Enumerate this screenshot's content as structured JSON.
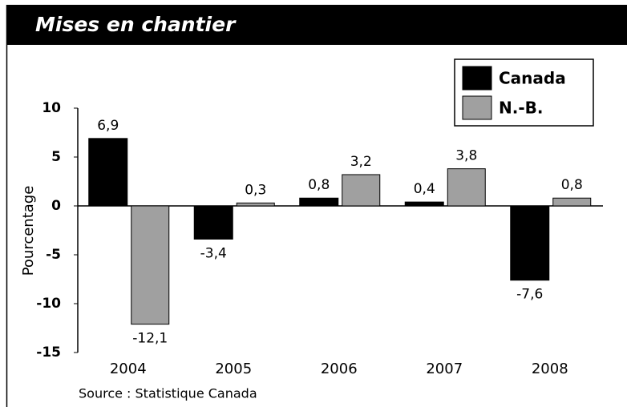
{
  "chart_data": {
    "type": "bar",
    "title": "Mises en chantier",
    "y_label": "Pourcentage",
    "source": "Source : Statistique Canada",
    "categories": [
      "2004",
      "2005",
      "2006",
      "2007",
      "2008"
    ],
    "series": [
      {
        "name": "Canada",
        "color": "#000000",
        "values": [
          6.9,
          -3.4,
          0.8,
          0.4,
          -7.6
        ],
        "value_labels": [
          "6,9",
          "-3,4",
          "0,8",
          "0,4",
          "-7,6"
        ]
      },
      {
        "name": "N.-B.",
        "color": "#a0a0a0",
        "values": [
          -12.1,
          0.3,
          3.2,
          3.8,
          0.8
        ],
        "value_labels": [
          "-12,1",
          "0,3",
          "3,2",
          "3,8",
          "0,8"
        ]
      }
    ],
    "ylim": [
      -15,
      10
    ],
    "yticks": [
      10,
      5,
      0,
      -5,
      -10,
      -15
    ],
    "legend": "top-right",
    "grid": false
  }
}
